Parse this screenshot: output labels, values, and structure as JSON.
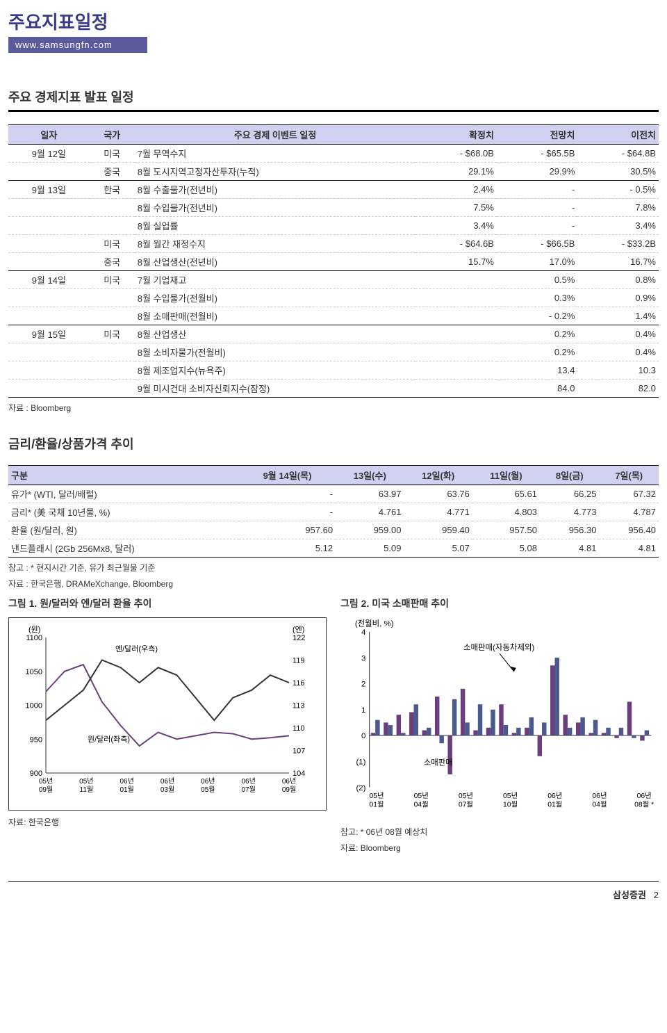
{
  "header": {
    "title": "주요지표일정",
    "url": "www.samsungfn.com"
  },
  "section1": {
    "title": "주요 경제지표 발표 일정",
    "cols": [
      "일자",
      "국가",
      "주요 경제 이벤트 일정",
      "확정치",
      "전망치",
      "이전치"
    ],
    "rows": [
      {
        "date": "9월 12일",
        "country": "미국",
        "event": "7월 무역수지",
        "v1": "- $68.0B",
        "v2": "- $65.5B",
        "v3": "- $64.8B",
        "sep": false
      },
      {
        "date": "",
        "country": "중국",
        "event": "8월 도시지역고정자산투자(누적)",
        "v1": "29.1%",
        "v2": "29.9%",
        "v3": "30.5%",
        "sep": true
      },
      {
        "date": "9월 13일",
        "country": "한국",
        "event": "8월 수출물가(전년비)",
        "v1": "2.4%",
        "v2": "-",
        "v3": "- 0.5%",
        "sep": false
      },
      {
        "date": "",
        "country": "",
        "event": "8월 수입물가(전년비)",
        "v1": "7.5%",
        "v2": "-",
        "v3": "7.8%",
        "sep": false
      },
      {
        "date": "",
        "country": "",
        "event": "8월 실업률",
        "v1": "3.4%",
        "v2": "-",
        "v3": "3.4%",
        "sep": false
      },
      {
        "date": "",
        "country": "미국",
        "event": "8월 월간 재정수지",
        "v1": "- $64.6B",
        "v2": "- $66.5B",
        "v3": "- $33.2B",
        "sep": false
      },
      {
        "date": "",
        "country": "중국",
        "event": "8월 산업생산(전년비)",
        "v1": "15.7%",
        "v2": "17.0%",
        "v3": "16.7%",
        "sep": true
      },
      {
        "date": "9월 14일",
        "country": "미국",
        "event": "7월 기업재고",
        "v1": "",
        "v2": "0.5%",
        "v3": "0.8%",
        "sep": false
      },
      {
        "date": "",
        "country": "",
        "event": "8월 수입물가(전월비)",
        "v1": "",
        "v2": "0.3%",
        "v3": "0.9%",
        "sep": false
      },
      {
        "date": "",
        "country": "",
        "event": "8월 소매판매(전월비)",
        "v1": "",
        "v2": "- 0.2%",
        "v3": "1.4%",
        "sep": true
      },
      {
        "date": "9월 15일",
        "country": "미국",
        "event": "8월 산업생산",
        "v1": "",
        "v2": "0.2%",
        "v3": "0.4%",
        "sep": false
      },
      {
        "date": "",
        "country": "",
        "event": "8월 소비자물가(전월비)",
        "v1": "",
        "v2": "0.2%",
        "v3": "0.4%",
        "sep": false
      },
      {
        "date": "",
        "country": "",
        "event": "8월 제조업지수(뉴욕주)",
        "v1": "",
        "v2": "13.4",
        "v3": "10.3",
        "sep": false
      },
      {
        "date": "",
        "country": "",
        "event": "9월 미시건대 소비자신뢰지수(잠정)",
        "v1": "",
        "v2": "84.0",
        "v3": "82.0",
        "sep": true
      }
    ],
    "source": "자료 : Bloomberg"
  },
  "section2": {
    "title": "금리/환율/상품가격 추이",
    "cols": [
      "구분",
      "9월 14일(목)",
      "13일(수)",
      "12일(화)",
      "11일(월)",
      "8일(금)",
      "7일(목)"
    ],
    "rows": [
      [
        "유가* (WTI, 달러/배럴)",
        "-",
        "63.97",
        "63.76",
        "65.61",
        "66.25",
        "67.32"
      ],
      [
        "금리* (美 국채 10년물, %)",
        "-",
        "4.761",
        "4.771",
        "4.803",
        "4.773",
        "4.787"
      ],
      [
        "환율 (원/달러, 원)",
        "957.60",
        "959.00",
        "959.40",
        "957.50",
        "956.30",
        "956.40"
      ],
      [
        "낸드플래시 (2Gb 256Mx8, 달러)",
        "5.12",
        "5.09",
        "5.07",
        "5.08",
        "4.81",
        "4.81"
      ]
    ],
    "note": "참고 : * 현지시간 기준, 유가 최근월물 기준",
    "source": "자료 : 한국은행, DRAMeXchange, Bloomberg"
  },
  "chart1": {
    "title": "그림 1. 원/달러와 엔/달러 환율 추이",
    "type": "line",
    "y1_label": "(원)",
    "y2_label": "(엔)",
    "y1_ticks": [
      900,
      950,
      1000,
      1050,
      1100
    ],
    "y2_ticks": [
      104,
      107,
      110,
      113,
      116,
      119,
      122
    ],
    "x_labels": [
      "05년\n09월",
      "05년\n11월",
      "06년\n01월",
      "06년\n03월",
      "06년\n05월",
      "06년\n07월",
      "06년\n09월"
    ],
    "series": [
      {
        "name": "원/달러(좌측)",
        "color": "#6b3f7d",
        "width": 2,
        "data": [
          1020,
          1050,
          1060,
          1005,
          970,
          940,
          960,
          950,
          955,
          960,
          958,
          950,
          952,
          955
        ]
      },
      {
        "name": "엔/달러(우측)",
        "color": "#333333",
        "width": 2,
        "data": [
          111,
          113,
          115,
          119,
          118,
          116,
          118,
          117,
          114,
          111,
          114,
          115,
          117,
          116
        ]
      }
    ],
    "bg": "#ffffff",
    "grid": "#cccccc",
    "border": "#333333",
    "source": "자료: 한국은행"
  },
  "chart2": {
    "title": "그림 2. 미국 소매판매 추이",
    "type": "bar",
    "y_label": "(전월비, %)",
    "y_ticks": [
      -2,
      -1,
      0,
      1,
      2,
      3,
      4
    ],
    "y_tick_labels": [
      "(2)",
      "(1)",
      "0",
      "1",
      "2",
      "3",
      "4"
    ],
    "x_labels": [
      "05년\n01월",
      "05년\n04월",
      "05년\n07월",
      "05년\n10월",
      "06년\n01월",
      "06년\n04월",
      "06년\n08월 *"
    ],
    "series": [
      {
        "name": "소매판매",
        "color": "#6b3f7d",
        "data": [
          0.1,
          0.5,
          0.8,
          0.9,
          0.2,
          1.5,
          -1.5,
          1.8,
          0.2,
          0.3,
          1.2,
          0.1,
          0.3,
          -0.8,
          2.7,
          0.8,
          0.5,
          0.1,
          0.1,
          -0.1,
          1.3,
          -0.2
        ]
      },
      {
        "name": "소매판매(자동차제외)",
        "color": "#4a5a8c",
        "data": [
          0.6,
          0.4,
          0.1,
          1.2,
          0.3,
          -0.3,
          1.4,
          0.5,
          1.2,
          1.0,
          0.4,
          0.3,
          0.7,
          0.5,
          3.0,
          0.3,
          0.7,
          0.6,
          0.3,
          0.3,
          -0.1,
          0.2
        ]
      }
    ],
    "bg": "#ffffff",
    "border": "#333333",
    "note": "참고: * 06년 08월 예상치",
    "source": "자료: Bloomberg"
  },
  "footer": {
    "brand": "삼성증권",
    "page": "2"
  }
}
